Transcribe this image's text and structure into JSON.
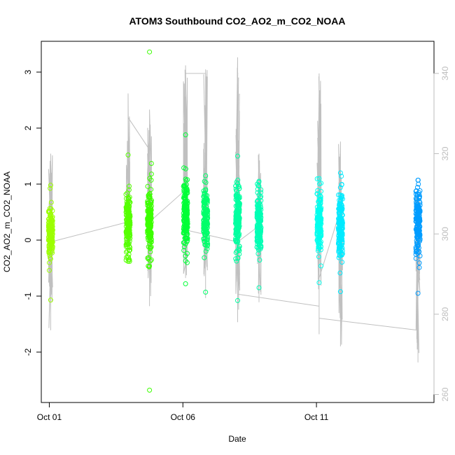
{
  "chart_data": {
    "type": "scatter",
    "title": "ATOM3 Southbound CO2_AO2_m_CO2_NOAA",
    "xlabel": "Date",
    "ylabel": "CO2_AO2_m_CO2_NOAA",
    "x_ticks": [
      {
        "day": 1,
        "label": "Oct 01"
      },
      {
        "day": 6,
        "label": "Oct 06"
      },
      {
        "day": 11,
        "label": "Oct 11"
      }
    ],
    "y_ticks": [
      -2,
      -1,
      0,
      1,
      2,
      3
    ],
    "y_tick_labels": [
      "-2",
      "-1",
      "0",
      "1",
      "2",
      "3"
    ],
    "y2_ticks": [
      260,
      280,
      300,
      320,
      340
    ],
    "y2_tick_labels": [
      "260",
      "280",
      "300",
      "320",
      "340"
    ],
    "xlim": [
      0.7,
      15.4
    ],
    "ylim": [
      -2.9,
      3.55
    ],
    "y2lim": [
      258,
      348
    ],
    "grid": false,
    "legend": "none",
    "series": [
      {
        "type": "points",
        "axis": "left",
        "clusters": [
          {
            "day": 1.05,
            "center": 0.15,
            "spread": 0.22,
            "min": -1.07,
            "max": 0.98,
            "color": "#9cff00"
          },
          {
            "day": 3.95,
            "center": 0.3,
            "spread": 0.3,
            "min": -0.38,
            "max": 1.52,
            "color": "#55ff00"
          },
          {
            "day": 4.75,
            "center": 0.3,
            "spread": 0.32,
            "min": -2.68,
            "max": 3.36,
            "color": "#3cff00"
          },
          {
            "day": 6.1,
            "center": 0.4,
            "spread": 0.3,
            "min": -0.78,
            "max": 1.88,
            "color": "#00ff36"
          },
          {
            "day": 6.85,
            "center": 0.35,
            "spread": 0.25,
            "min": -0.93,
            "max": 1.15,
            "color": "#00ff6a"
          },
          {
            "day": 8.05,
            "center": 0.4,
            "spread": 0.3,
            "min": -1.08,
            "max": 1.5,
            "color": "#00ffa0"
          },
          {
            "day": 8.85,
            "center": 0.3,
            "spread": 0.28,
            "min": -0.85,
            "max": 1.05,
            "color": "#00ffb4"
          },
          {
            "day": 11.1,
            "center": 0.35,
            "spread": 0.3,
            "min": -0.76,
            "max": 1.1,
            "color": "#00ffee"
          },
          {
            "day": 11.9,
            "center": 0.25,
            "spread": 0.3,
            "min": -0.92,
            "max": 1.2,
            "color": "#00eaff"
          },
          {
            "day": 14.8,
            "center": 0.3,
            "spread": 0.28,
            "min": -0.95,
            "max": 1.07,
            "color": "#009cff"
          }
        ]
      },
      {
        "type": "line",
        "axis": "right",
        "color": "#c0c0c0",
        "segments": [
          {
            "day": 1.05,
            "base": 298,
            "low": 276,
            "high": 320
          },
          {
            "day": 3.95,
            "base": 303,
            "low": 297,
            "high": 335
          },
          {
            "day": 4.75,
            "base": 305,
            "low": 282,
            "high": 331
          },
          {
            "day": 6.1,
            "base": 308,
            "low": 289,
            "high": 342
          },
          {
            "day": 6.85,
            "base": 307,
            "low": 284,
            "high": 341
          },
          {
            "day": 8.05,
            "base": 305,
            "low": 278,
            "high": 344
          },
          {
            "day": 8.85,
            "base": 302,
            "low": 283,
            "high": 320
          },
          {
            "day": 11.1,
            "base": 304,
            "low": 275,
            "high": 340
          },
          {
            "day": 11.9,
            "base": 300,
            "low": 272,
            "high": 323
          },
          {
            "day": 14.8,
            "base": 298,
            "low": 268,
            "high": 310
          }
        ],
        "connectors": [
          [
            1.05,
            298,
            3.95,
            303
          ],
          [
            3.95,
            329,
            4.75,
            321
          ],
          [
            4.75,
            303,
            6.1,
            311
          ],
          [
            6.1,
            340,
            6.85,
            340
          ],
          [
            6.1,
            301,
            8.05,
            298
          ],
          [
            8.05,
            298,
            8.85,
            302
          ],
          [
            8.05,
            285,
            11.1,
            282
          ],
          [
            11.1,
            289,
            11.9,
            306
          ],
          [
            11.1,
            279,
            14.8,
            276
          ]
        ]
      }
    ]
  }
}
